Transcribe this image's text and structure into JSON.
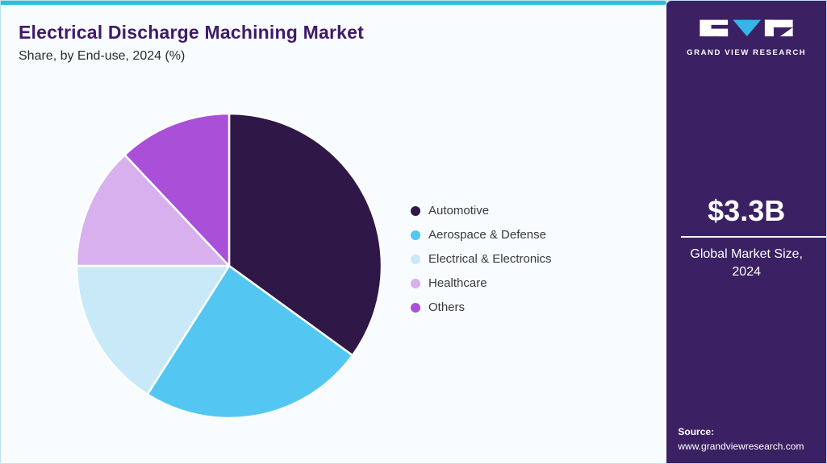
{
  "header": {
    "title": "Electrical Discharge Machining Market",
    "subtitle": "Share, by End-use, 2024 (%)"
  },
  "sidebar": {
    "brand": "GRAND VIEW RESEARCH",
    "market_size": "$3.3B",
    "market_size_label": "Global Market Size, 2024",
    "source_label": "Source:",
    "source_url": "www.grandviewresearch.com"
  },
  "chart_data": {
    "type": "pie",
    "title": "Electrical Discharge Machining Market Share, by End-use, 2024 (%)",
    "categories": [
      "Automotive",
      "Aerospace & Defense",
      "Electrical & Electronics",
      "Healthcare",
      "Others"
    ],
    "values": [
      35,
      24,
      16,
      13,
      12
    ],
    "colors": [
      "#2f1747",
      "#53c7f1",
      "#c8e9f8",
      "#d8b0ee",
      "#a94fd8"
    ],
    "legend_position": "right",
    "start_angle_deg": -90,
    "direction": "clockwise",
    "units": "%"
  },
  "colors": {
    "accent_top_bar": "#29bfe0",
    "sidebar_bg": "#3b2164",
    "title_text": "#3f1a68"
  }
}
